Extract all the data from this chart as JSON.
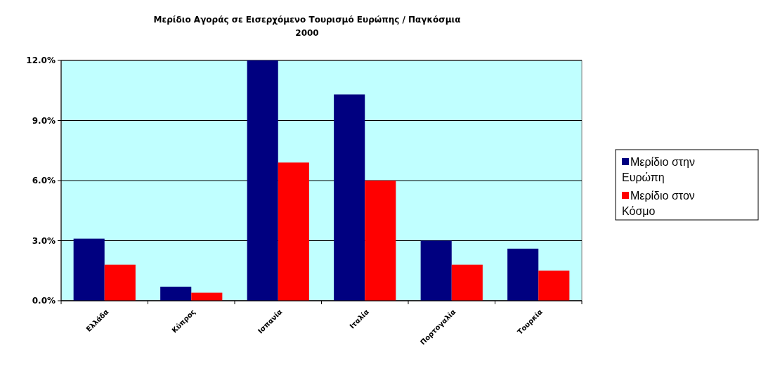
{
  "chart_data": {
    "type": "bar",
    "title": "Μερίδιο Αγοράς σε Εισερχόμενο Τουρισμό Ευρώπης / Παγκόσμια",
    "subtitle": "2000",
    "categories": [
      "Ελλάδα",
      "Κύπρος",
      "Ισπανία",
      "Ιταλία",
      "Πορτογαλία",
      "Τουρκία"
    ],
    "series": [
      {
        "name": "Μερίδιο στην Ευρώπη",
        "color": "#000080",
        "values": [
          3.1,
          0.7,
          12.0,
          10.3,
          3.0,
          2.6
        ]
      },
      {
        "name": "Μερίδιο στον Κόσμο",
        "color": "#ff0000",
        "values": [
          1.8,
          0.4,
          6.9,
          6.0,
          1.8,
          1.5
        ]
      }
    ],
    "ylim": [
      0,
      12
    ],
    "yticks": [
      {
        "value": 0,
        "label": "0.0%"
      },
      {
        "value": 3,
        "label": "3.0%"
      },
      {
        "value": 6,
        "label": "6.0%"
      },
      {
        "value": 9,
        "label": "9.0%"
      },
      {
        "value": 12,
        "label": "12.0%"
      }
    ],
    "grid": "y",
    "legend": "right"
  }
}
